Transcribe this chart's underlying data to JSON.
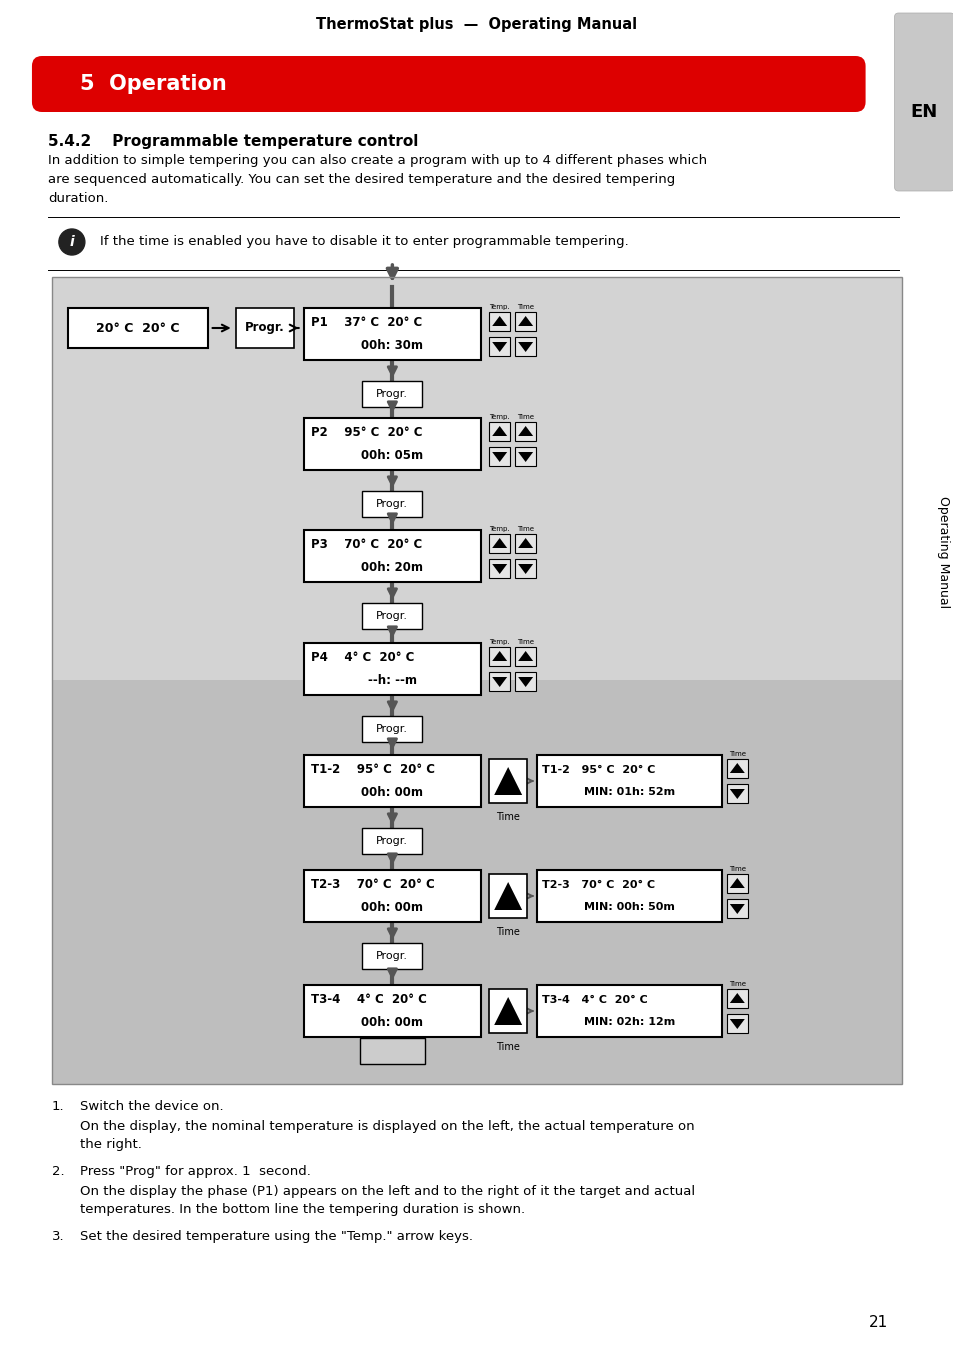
{
  "page_title": "ThermoStat plus  —  Operating Manual",
  "section_title": "5  Operation",
  "section_bg": "#E00000",
  "section_text_color": "#FFFFFF",
  "subsection": "5.4.2    Programmable temperature control",
  "body_text": "In addition to simple tempering you can also create a program with up to 4 different phases which\nare sequenced automatically. You can set the desired temperature and the desired tempering\nduration.",
  "note_text": "If the time is enabled you have to disable it to enter programmable tempering.",
  "side_label": "Operating Manual",
  "en_label": "EN",
  "diagram_bg_top": "#D8D8D8",
  "diagram_bg_bottom": "#C0C0C0",
  "footer_items": [
    "1.\tSwitch the device on.",
    "\tOn the display, the nominal temperature is displayed on the left, the actual temperature on\n\tthe right.",
    "2.\tPress \"Prog\" for approx. 1  second.",
    "\tOn the display the phase (P1) appears on the left and to the right of it the target and actual\n\ttemperatures. In the bottom line the tempering duration is shown.",
    "3.\tSet the desired temperature using the \"Temp.\" arrow keys."
  ],
  "page_number": "21"
}
